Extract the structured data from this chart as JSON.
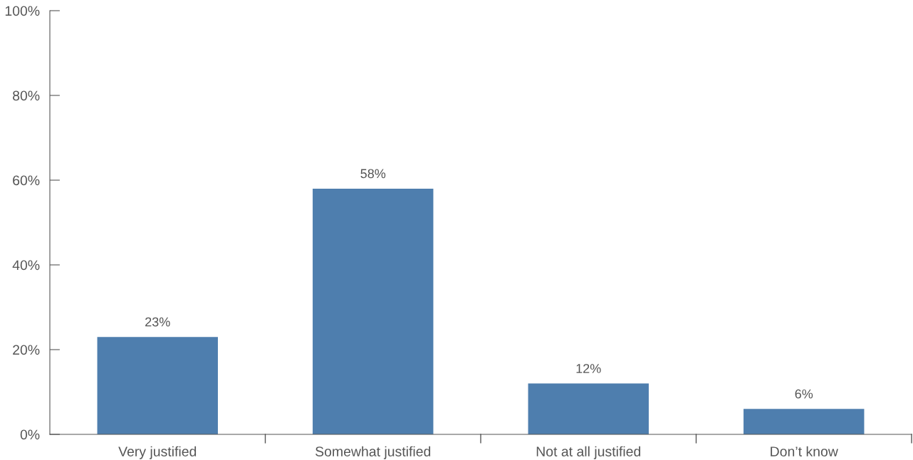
{
  "chart_data": {
    "type": "bar",
    "categories": [
      "Very justified",
      "Somewhat justified",
      "Not at all justified",
      "Don’t know"
    ],
    "values": [
      23,
      58,
      12,
      6
    ],
    "color": "#4e7eae",
    "value_labels": [
      "23%",
      "58%",
      "12%",
      "6%"
    ],
    "ylim": [
      0,
      100
    ],
    "yticks": [
      {
        "value": 0,
        "label": "0%"
      },
      {
        "value": 20,
        "label": "20%"
      },
      {
        "value": 40,
        "label": "40%"
      },
      {
        "value": 60,
        "label": "60%"
      },
      {
        "value": 80,
        "label": "80%"
      },
      {
        "value": 100,
        "label": "100%"
      }
    ],
    "grid": false,
    "legend": false
  }
}
